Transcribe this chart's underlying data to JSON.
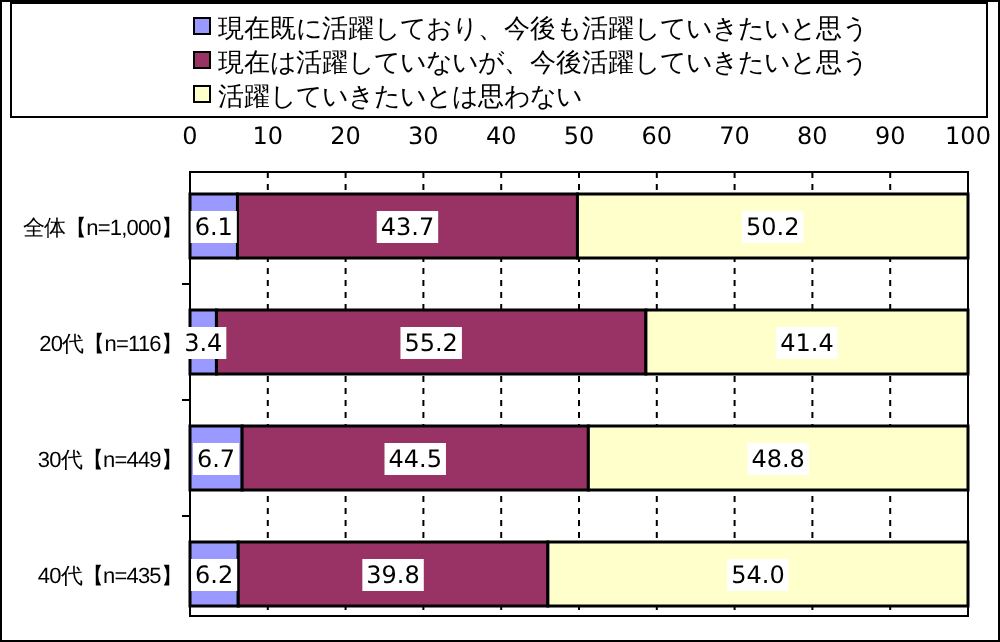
{
  "chart_data": {
    "type": "bar",
    "orientation": "horizontal",
    "stacked": true,
    "categories": [
      "全体【n=1,000】",
      "20代【n=116】",
      "30代【n=449】",
      "40代【n=435】"
    ],
    "series": [
      {
        "name": "現在既に活躍しており、今後も活躍していきたいと思う",
        "color": "#9999ff",
        "values": [
          6.1,
          3.4,
          6.7,
          6.2
        ],
        "value_labels": [
          "6.1",
          "3.4",
          "6.7",
          "6.2"
        ]
      },
      {
        "name": "現在は活躍していないが、今後活躍していきたいと思う",
        "color": "#993366",
        "values": [
          43.7,
          55.2,
          44.5,
          39.8
        ],
        "value_labels": [
          "43.7",
          "55.2",
          "44.5",
          "39.8"
        ]
      },
      {
        "name": "活躍していきたいとは思わない",
        "color": "#ffffcc",
        "values": [
          50.2,
          41.4,
          48.8,
          54.0
        ],
        "value_labels": [
          "50.2",
          "41.4",
          "48.8",
          "54.0"
        ]
      }
    ],
    "xlim": [
      0,
      100
    ],
    "xticks": [
      0,
      10,
      20,
      30,
      40,
      50,
      60,
      70,
      80,
      90,
      100
    ],
    "grid": "x",
    "legend": "top"
  }
}
